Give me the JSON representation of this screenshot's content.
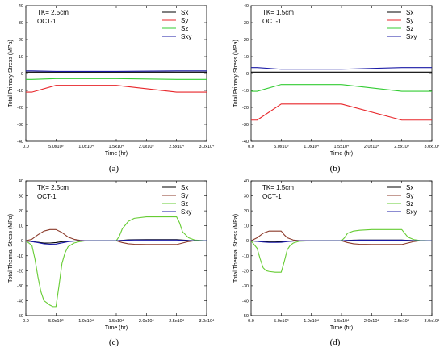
{
  "chart_data": [
    {
      "id": "a",
      "type": "line",
      "caption": "(a)",
      "annotations": [
        "TK= 2.5cm",
        "OCT-1"
      ],
      "xlabel": "Time (hr)",
      "ylabel": "Total Primary Stress (MPa)",
      "xlim": [
        0,
        30000
      ],
      "ylim": [
        -40,
        40
      ],
      "xticks": [
        0,
        5000,
        10000,
        15000,
        20000,
        25000,
        30000
      ],
      "xtick_labels": [
        "0.0",
        "5.0x10³",
        "1.0x10⁴",
        "1.5x10⁴",
        "2.0x10⁴",
        "2.5x10⁴",
        "3.0x10⁴"
      ],
      "yticks": [
        -40,
        -30,
        -20,
        -10,
        0,
        10,
        20,
        30,
        40
      ],
      "legend_position": "top-right",
      "series": [
        {
          "name": "Sx",
          "color": "#000000",
          "x": [
            0,
            30000
          ],
          "y": [
            0.8,
            0.8
          ]
        },
        {
          "name": "Sy",
          "color": "#e8262a",
          "x": [
            0,
            1000,
            5000,
            15000,
            25000,
            30000
          ],
          "y": [
            -11,
            -11,
            -7,
            -7,
            -11,
            -11
          ]
        },
        {
          "name": "Sz",
          "color": "#33cc33",
          "x": [
            0,
            1000,
            5000,
            15000,
            25000,
            30000
          ],
          "y": [
            -3.5,
            -3.5,
            -3,
            -3,
            -3.5,
            -3.5
          ]
        },
        {
          "name": "Sxy",
          "color": "#1a1aa6",
          "x": [
            0,
            1000,
            5000,
            15000,
            25000,
            30000
          ],
          "y": [
            1.5,
            1.5,
            1.2,
            1.2,
            1.5,
            1.5
          ]
        }
      ]
    },
    {
      "id": "b",
      "type": "line",
      "caption": "(b)",
      "annotations": [
        "TK= 1.5cm",
        "OCT-1"
      ],
      "xlabel": "Time (hr)",
      "ylabel": "Total Primary Stress (MPa)",
      "xlim": [
        0,
        30000
      ],
      "ylim": [
        -40,
        40
      ],
      "xticks": [
        0,
        5000,
        10000,
        15000,
        20000,
        25000,
        30000
      ],
      "xtick_labels": [
        "0.0",
        "5.0x10³",
        "1.0x10⁴",
        "1.5x10⁴",
        "2.0x10⁴",
        "2.5x10⁴",
        "3.0x10⁴"
      ],
      "yticks": [
        -40,
        -30,
        -20,
        -10,
        0,
        10,
        20,
        30,
        40
      ],
      "legend_position": "top-right",
      "series": [
        {
          "name": "Sx",
          "color": "#000000",
          "x": [
            0,
            30000
          ],
          "y": [
            0.8,
            0.8
          ]
        },
        {
          "name": "Sy",
          "color": "#e8262a",
          "x": [
            0,
            1000,
            5000,
            15000,
            25000,
            30000
          ],
          "y": [
            -27.5,
            -27.5,
            -18,
            -18,
            -27.5,
            -27.5
          ]
        },
        {
          "name": "Sz",
          "color": "#33cc33",
          "x": [
            0,
            1000,
            5000,
            15000,
            25000,
            30000
          ],
          "y": [
            -10.5,
            -10.5,
            -6.5,
            -6.5,
            -10.5,
            -10.5
          ]
        },
        {
          "name": "Sxy",
          "color": "#1a1aa6",
          "x": [
            0,
            1000,
            5000,
            15000,
            25000,
            30000
          ],
          "y": [
            3.5,
            3.5,
            2.5,
            2.5,
            3.5,
            3.5
          ]
        }
      ]
    },
    {
      "id": "c",
      "type": "line",
      "caption": "(c)",
      "annotations": [
        "TK= 2.5cm",
        "OCT-1"
      ],
      "xlabel": "Time (hr)",
      "ylabel": "Total Thermal Stress (MPa)",
      "xlim": [
        0,
        30000
      ],
      "ylim": [
        -50,
        40
      ],
      "xticks": [
        0,
        5000,
        10000,
        15000,
        20000,
        25000,
        30000
      ],
      "xtick_labels": [
        "0.0",
        "5.0x10³",
        "1.0x10⁴",
        "1.5x10⁴",
        "2.0x10⁴",
        "2.5x10⁴",
        "3.0x10⁴"
      ],
      "yticks": [
        -50,
        -40,
        -30,
        -20,
        -10,
        0,
        10,
        20,
        30,
        40
      ],
      "legend_position": "top-right",
      "series": [
        {
          "name": "Sx",
          "color": "#000000",
          "x": [
            0,
            1000,
            2000,
            3000,
            4000,
            5000,
            6000,
            7000,
            8000,
            9000,
            10000,
            15000,
            16000,
            17000,
            18000,
            20000,
            25000,
            26000,
            27000,
            28000,
            30000
          ],
          "y": [
            0,
            -0.5,
            -1,
            -1.5,
            -1.5,
            -1.2,
            -0.6,
            -0.3,
            -0.1,
            0,
            0,
            0,
            0.3,
            0.6,
            0.7,
            0.8,
            0.8,
            0.5,
            0.2,
            0,
            0
          ]
        },
        {
          "name": "Sy",
          "color": "#8b3a2a",
          "x": [
            0,
            1000,
            2000,
            3000,
            4000,
            5000,
            6000,
            7000,
            8000,
            9000,
            10000,
            15000,
            16000,
            17000,
            18000,
            20000,
            25000,
            26000,
            27000,
            28000,
            30000
          ],
          "y": [
            0,
            1,
            4,
            6.5,
            7.5,
            7.5,
            5.5,
            2.5,
            1,
            0.3,
            0,
            0,
            -1.2,
            -2,
            -2.3,
            -2.5,
            -2.5,
            -1.5,
            -0.5,
            0,
            0
          ]
        },
        {
          "name": "Sz",
          "color": "#66cc33",
          "x": [
            0,
            1000,
            1500,
            2000,
            2500,
            3000,
            3500,
            4000,
            4500,
            5000,
            5500,
            6000,
            6500,
            7000,
            8000,
            9000,
            10000,
            15000,
            15500,
            16000,
            17000,
            18000,
            20000,
            25000,
            25500,
            26000,
            27000,
            28000,
            30000
          ],
          "y": [
            0,
            -3,
            -12,
            -24,
            -34,
            -40,
            -41.5,
            -43,
            -44,
            -44,
            -30,
            -15,
            -8,
            -4,
            -1.5,
            -0.5,
            0,
            0,
            3,
            8,
            13,
            15,
            16,
            16,
            12,
            6,
            2,
            0.5,
            0
          ]
        },
        {
          "name": "Sxy",
          "color": "#1a1aa6",
          "x": [
            0,
            1000,
            2000,
            3000,
            4000,
            5000,
            6000,
            7000,
            8000,
            9000,
            10000,
            15000,
            16000,
            17000,
            18000,
            20000,
            25000,
            26000,
            27000,
            28000,
            30000
          ],
          "y": [
            0,
            -0.5,
            -1.2,
            -2,
            -2.3,
            -2.2,
            -1.4,
            -0.6,
            -0.2,
            0,
            0,
            0,
            0.2,
            0.4,
            0.5,
            0.5,
            0.5,
            0.3,
            0.1,
            0,
            0
          ]
        }
      ]
    },
    {
      "id": "d",
      "type": "line",
      "caption": "(d)",
      "annotations": [
        "TK= 1.5cm",
        "OCT-1"
      ],
      "xlabel": "Time (hr)",
      "ylabel": "Total Thermal Stress (MPa)",
      "xlim": [
        0,
        30000
      ],
      "ylim": [
        -50,
        40
      ],
      "xticks": [
        0,
        5000,
        10000,
        15000,
        20000,
        25000,
        30000
      ],
      "xtick_labels": [
        "0.0",
        "5.0x10³",
        "1.0x10⁴",
        "1.5x10⁴",
        "2.0x10⁴",
        "2.5x10⁴",
        "3.0x10⁴"
      ],
      "yticks": [
        -50,
        -40,
        -30,
        -20,
        -10,
        0,
        10,
        20,
        30,
        40
      ],
      "legend_position": "top-right",
      "series": [
        {
          "name": "Sx",
          "color": "#000000",
          "x": [
            0,
            1000,
            2000,
            3000,
            4000,
            5000,
            6000,
            7000,
            8000,
            10000,
            15000,
            16000,
            17000,
            18000,
            20000,
            25000,
            26000,
            27000,
            28000,
            30000
          ],
          "y": [
            0,
            -0.3,
            -0.6,
            -0.8,
            -0.8,
            -0.6,
            -0.3,
            -0.1,
            0,
            0,
            0,
            0.2,
            0.4,
            0.5,
            0.5,
            0.5,
            0.3,
            0.1,
            0,
            0
          ]
        },
        {
          "name": "Sy",
          "color": "#8b3a2a",
          "x": [
            0,
            1000,
            2000,
            3000,
            4000,
            5000,
            5500,
            6000,
            7000,
            8000,
            10000,
            15000,
            16000,
            17000,
            18000,
            20000,
            25000,
            26000,
            27000,
            28000,
            30000
          ],
          "y": [
            0,
            2,
            5,
            6.5,
            6.5,
            6.5,
            4,
            2,
            0.5,
            0.1,
            0,
            0,
            -1.2,
            -2,
            -2.3,
            -2.5,
            -2.5,
            -1.5,
            -0.5,
            0,
            0
          ]
        },
        {
          "name": "Sz",
          "color": "#66cc33",
          "x": [
            0,
            1000,
            1500,
            2000,
            2500,
            3000,
            4000,
            5000,
            5500,
            6000,
            6500,
            7000,
            8000,
            10000,
            15000,
            15500,
            16000,
            17000,
            18000,
            20000,
            25000,
            25500,
            26000,
            27000,
            28000,
            30000
          ],
          "y": [
            0,
            -5,
            -12,
            -18,
            -20,
            -20.5,
            -21,
            -21,
            -14,
            -6,
            -3,
            -1.5,
            -0.3,
            0,
            0,
            2,
            5,
            6.5,
            7,
            7.5,
            7.5,
            5,
            2.5,
            0.8,
            0.2,
            0
          ]
        },
        {
          "name": "Sxy",
          "color": "#1a1aa6",
          "x": [
            0,
            1000,
            2000,
            3000,
            4000,
            5000,
            6000,
            7000,
            8000,
            10000,
            15000,
            16000,
            17000,
            18000,
            20000,
            25000,
            26000,
            27000,
            28000,
            30000
          ],
          "y": [
            0,
            -0.4,
            -0.8,
            -1.1,
            -1.1,
            -1,
            -0.5,
            -0.2,
            0,
            0,
            0,
            0.2,
            0.3,
            0.4,
            0.4,
            0.4,
            0.2,
            0.1,
            0,
            0
          ]
        }
      ]
    }
  ]
}
